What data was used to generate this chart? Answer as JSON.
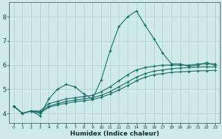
{
  "xlabel": "Humidex (Indice chaleur)",
  "bg_color": "#ceeaea",
  "grid_color": "#aecece",
  "line_color": "#1a7068",
  "xlim": [
    -0.5,
    23.5
  ],
  "ylim": [
    3.6,
    8.6
  ],
  "xticks": [
    0,
    1,
    2,
    3,
    4,
    5,
    6,
    7,
    8,
    9,
    10,
    11,
    12,
    13,
    14,
    15,
    16,
    17,
    18,
    19,
    20,
    21,
    22,
    23
  ],
  "yticks": [
    4,
    5,
    6,
    7,
    8
  ],
  "series": [
    [
      4.3,
      4.0,
      4.1,
      3.9,
      4.6,
      5.0,
      5.2,
      5.1,
      4.8,
      4.6,
      5.4,
      6.6,
      7.6,
      8.0,
      8.25,
      7.65,
      7.1,
      6.5,
      6.05,
      6.05,
      5.95,
      6.0,
      6.1,
      6.0
    ],
    [
      4.3,
      4.0,
      4.1,
      4.1,
      4.4,
      4.5,
      4.6,
      4.65,
      4.7,
      4.75,
      4.9,
      5.1,
      5.35,
      5.6,
      5.8,
      5.9,
      5.95,
      6.0,
      6.0,
      6.0,
      6.0,
      6.05,
      6.05,
      6.05
    ],
    [
      4.3,
      4.0,
      4.1,
      4.05,
      4.3,
      4.4,
      4.5,
      4.55,
      4.6,
      4.65,
      4.75,
      4.9,
      5.1,
      5.3,
      5.5,
      5.65,
      5.75,
      5.8,
      5.85,
      5.88,
      5.9,
      5.92,
      5.93,
      5.92
    ],
    [
      4.3,
      4.0,
      4.1,
      4.0,
      4.25,
      4.35,
      4.42,
      4.48,
      4.52,
      4.57,
      4.67,
      4.8,
      4.97,
      5.15,
      5.35,
      5.5,
      5.6,
      5.65,
      5.7,
      5.72,
      5.74,
      5.76,
      5.77,
      5.78
    ]
  ]
}
